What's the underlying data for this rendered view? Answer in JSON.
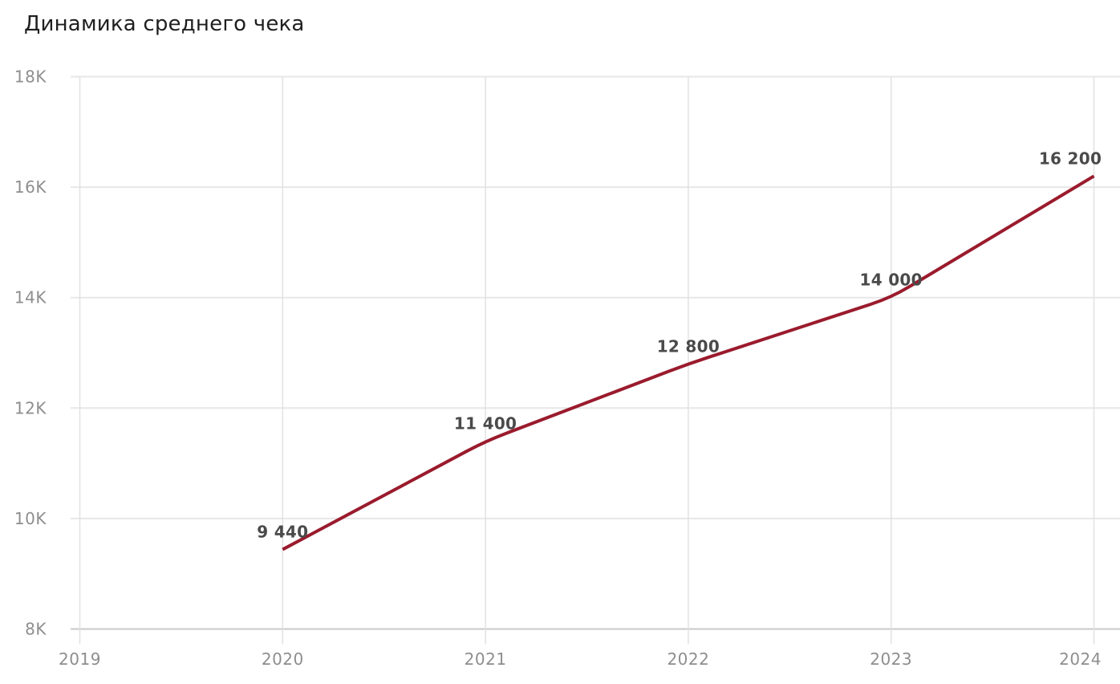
{
  "chart_data": {
    "type": "line",
    "title": "Динамика среднего чека",
    "x": [
      2020,
      2021,
      2022,
      2023,
      2024
    ],
    "values": [
      9440,
      11400,
      12800,
      14000,
      16200
    ],
    "point_labels": [
      "9 440",
      "11 400",
      "12 800",
      "14 000",
      "16 200"
    ],
    "x_ticks": {
      "values": [
        2019,
        2020,
        2021,
        2022,
        2023,
        2024
      ],
      "labels": [
        "2019",
        "2020",
        "2021",
        "2022",
        "2023",
        "2024"
      ]
    },
    "y_ticks": {
      "values": [
        8000,
        10000,
        12000,
        14000,
        16000,
        18000
      ],
      "labels": [
        "8K",
        "10K",
        "12K",
        "14K",
        "16K",
        "18K"
      ]
    },
    "xlim": [
      2019,
      2024
    ],
    "ylim": [
      8000,
      18000
    ],
    "grid": true,
    "legend_position": "none",
    "line_color": "#9a1b2d"
  },
  "colors": {
    "background": "#ffffff",
    "title_text": "#1f1f1f",
    "grid_horizontal": "#e7e7e7",
    "grid_vertical": "#e1e1e1",
    "axis_baseline": "#c8c8c8",
    "tick_label": "#8e8e8e",
    "point_label": "#4a4a4a",
    "line": "#9a1b2d"
  }
}
